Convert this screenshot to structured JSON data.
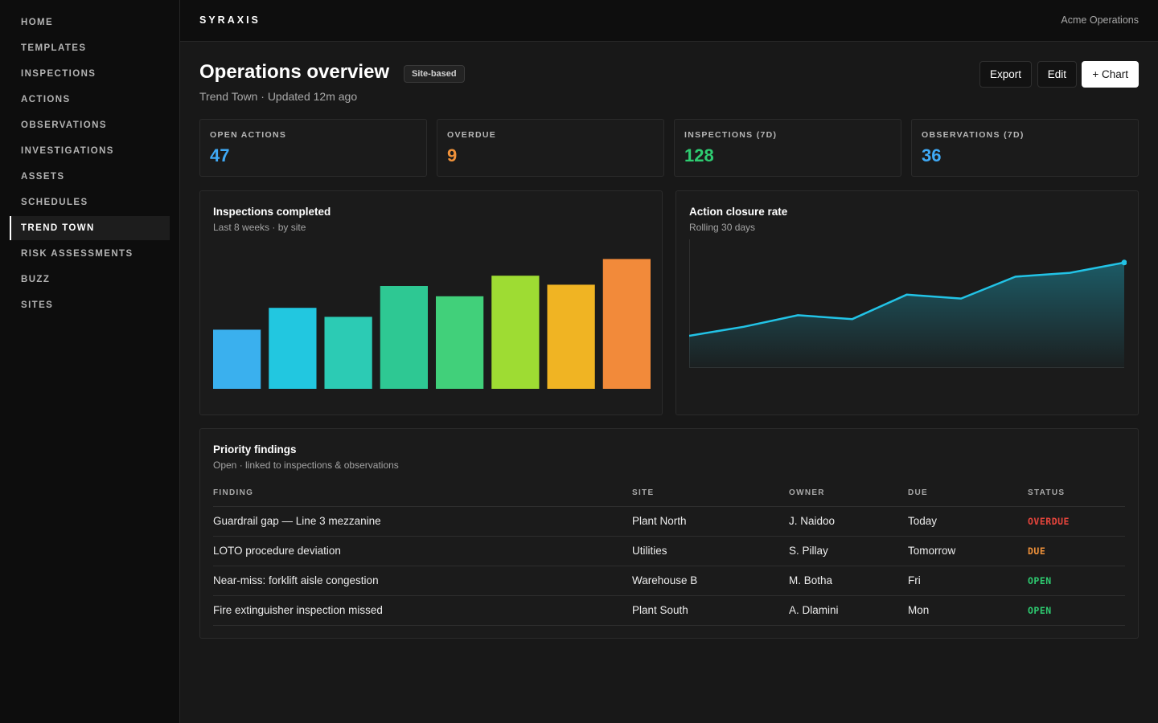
{
  "sidebar": {
    "items": [
      {
        "label": "HOME"
      },
      {
        "label": "TEMPLATES"
      },
      {
        "label": "INSPECTIONS"
      },
      {
        "label": "ACTIONS"
      },
      {
        "label": "OBSERVATIONS"
      },
      {
        "label": "INVESTIGATIONS"
      },
      {
        "label": "ASSETS"
      },
      {
        "label": "SCHEDULES"
      },
      {
        "label": "TREND TOWN",
        "active": true
      },
      {
        "label": "RISK ASSESSMENTS"
      },
      {
        "label": "BUZZ"
      },
      {
        "label": "SITES"
      }
    ]
  },
  "topbar": {
    "brand": "SYRAXIS",
    "org": "Acme Operations"
  },
  "header": {
    "title": "Operations overview",
    "badge": "Site-based",
    "subtitle": "Trend Town · Updated 12m ago",
    "buttons": {
      "export": "Export",
      "edit": "Edit",
      "add_chart": "+ Chart"
    }
  },
  "kpis": [
    {
      "label": "OPEN ACTIONS",
      "value": "47",
      "color": "#3fa9f5"
    },
    {
      "label": "OVERDUE",
      "value": "9",
      "color": "#f0923a"
    },
    {
      "label": "INSPECTIONS (7D)",
      "value": "128",
      "color": "#2ecc71"
    },
    {
      "label": "OBSERVATIONS (7D)",
      "value": "36",
      "color": "#3fa9f5"
    }
  ],
  "chart_data": [
    {
      "type": "bar",
      "title": "Inspections completed",
      "subtitle": "Last 8 weeks · by site",
      "categories": [
        "",
        "",
        "",
        "",
        "",
        "",
        "",
        ""
      ],
      "values": [
        46,
        63,
        56,
        80,
        72,
        88,
        81,
        101
      ],
      "colors": [
        "#3ab0ee",
        "#22c7e0",
        "#2ccbb4",
        "#2ec893",
        "#41d07a",
        "#9edc33",
        "#f0b423",
        "#f28a3a"
      ],
      "ylim": [
        0,
        110
      ],
      "grid": false,
      "legend": "none"
    },
    {
      "type": "area",
      "title": "Action closure rate",
      "subtitle": "Rolling 30 days",
      "x": [
        1,
        2,
        3,
        4,
        5,
        6,
        7,
        8,
        9
      ],
      "values": [
        25,
        32,
        41,
        38,
        57,
        54,
        71,
        74,
        82
      ],
      "ylim": [
        0,
        100
      ],
      "color": "#22c3e6",
      "grid": false,
      "legend": "none"
    }
  ],
  "findings": {
    "title": "Priority findings",
    "subtitle": "Open · linked to inspections & observations",
    "columns": [
      "FINDING",
      "SITE",
      "OWNER",
      "DUE",
      "STATUS"
    ],
    "rows": [
      {
        "finding": "Guardrail gap — Line 3 mezzanine",
        "site": "Plant North",
        "owner": "J. Naidoo",
        "due": "Today",
        "status": "OVERDUE",
        "status_color": "#e8453c"
      },
      {
        "finding": "LOTO procedure deviation",
        "site": "Utilities",
        "owner": "S. Pillay",
        "due": "Tomorrow",
        "status": "DUE",
        "status_color": "#f0923a"
      },
      {
        "finding": "Near-miss: forklift aisle congestion",
        "site": "Warehouse B",
        "owner": "M. Botha",
        "due": "Fri",
        "status": "OPEN",
        "status_color": "#2ecc71"
      },
      {
        "finding": "Fire extinguisher inspection missed",
        "site": "Plant South",
        "owner": "A. Dlamini",
        "due": "Mon",
        "status": "OPEN",
        "status_color": "#2ecc71"
      }
    ]
  }
}
